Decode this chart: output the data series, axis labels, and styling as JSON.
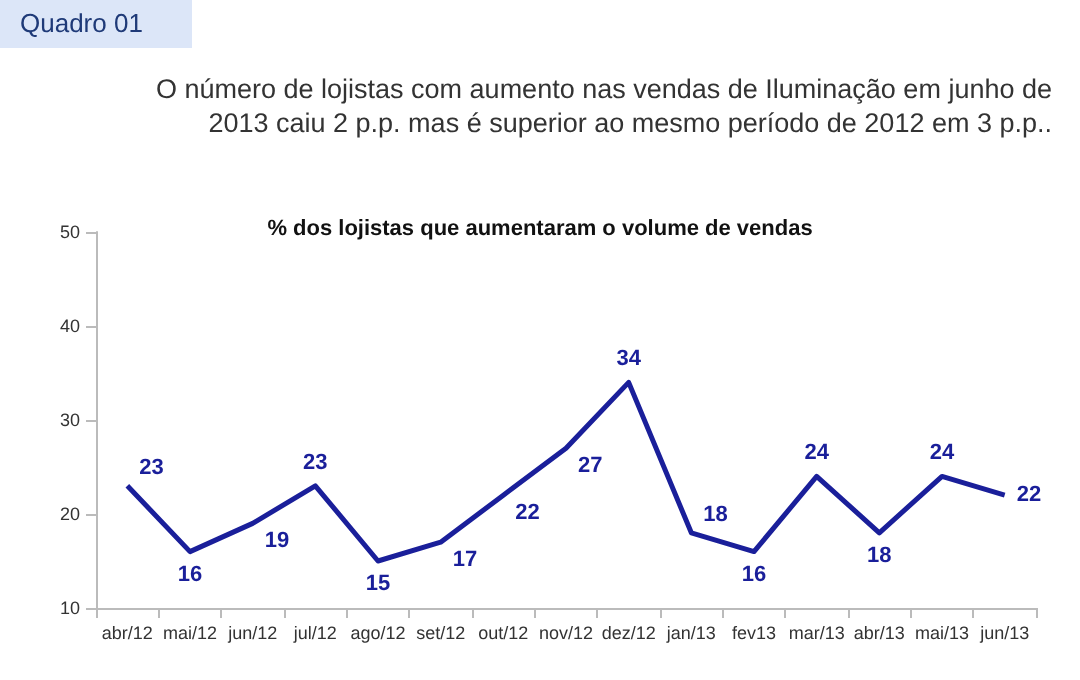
{
  "chart_data": {
    "type": "line",
    "title": "% dos lojistas que aumentaram o volume de vendas",
    "subtitle": "O número de lojistas com aumento nas vendas de Iluminação em junho de 2013 caiu 2 p.p. mas é superior ao mesmo período de 2012 em 3 p.p..",
    "annotations": [
      "Quadro 01"
    ],
    "categories": [
      "abr/12",
      "mai/12",
      "jun/12",
      "jul/12",
      "ago/12",
      "set/12",
      "out/12",
      "nov/12",
      "dez/12",
      "jan/13",
      "fev13",
      "mar/13",
      "abr/13",
      "mai/13",
      "jun/13"
    ],
    "series": [
      {
        "color": "#1a1f9a",
        "values": [
          23,
          16,
          19,
          23,
          15,
          17,
          22,
          27,
          34,
          18,
          16,
          24,
          18,
          24,
          22
        ]
      }
    ],
    "ylim": [
      10,
      50
    ],
    "yticks": [
      10,
      20,
      30,
      40,
      50
    ],
    "grid": false,
    "marker": "none",
    "line_style": "solid",
    "data_labels": true
  }
}
